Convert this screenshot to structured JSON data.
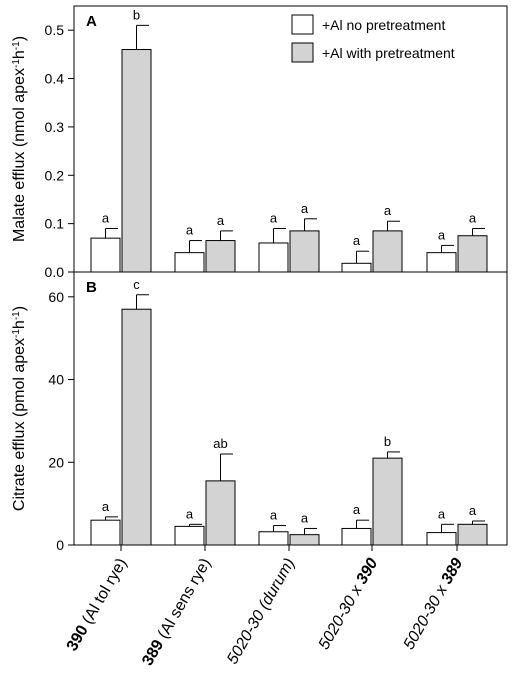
{
  "chart_data": {
    "type": "bar",
    "categories": [
      {
        "bold": "390",
        "rest": " (Al tol rye)",
        "italic": false
      },
      {
        "bold": "389",
        "rest": " (Al sens rye)",
        "italic": false
      },
      {
        "bold": "",
        "rest": "5020-30 (durum)",
        "italic": true
      },
      {
        "bold": "390",
        "rest": "5020-30 x ",
        "italic": true,
        "bold_last": true
      },
      {
        "bold": "389",
        "rest": "5020-30 x ",
        "italic": true,
        "bold_last": true
      }
    ],
    "legend": {
      "placement": "top-right",
      "entries": [
        {
          "label": "+Al no pretreatment",
          "color": "#ffffff"
        },
        {
          "label": "+Al with pretreatment",
          "color": "#d3d3d3"
        }
      ]
    },
    "panels": [
      {
        "label": "A",
        "ylabel": "Malate efflux (nmol apex",
        "ylabel_sup1": "-1",
        "ylabel_mid": "h",
        "ylabel_sup2": "-1",
        "ylabel_end": ")",
        "ylim": [
          0,
          0.55
        ],
        "ticks": [
          0.0,
          0.1,
          0.2,
          0.3,
          0.4,
          0.5
        ],
        "tick_labels": [
          "0.0",
          "0.1",
          "0.2",
          "0.3",
          "0.4",
          "0.5"
        ],
        "series": [
          {
            "name": "+Al no pretreatment",
            "values": [
              0.07,
              0.04,
              0.06,
              0.018,
              0.04
            ],
            "errors": [
              0.02,
              0.025,
              0.03,
              0.025,
              0.015
            ],
            "sig": [
              "a",
              "a",
              "a",
              "a",
              "a"
            ]
          },
          {
            "name": "+Al with pretreatment",
            "values": [
              0.46,
              0.065,
              0.085,
              0.085,
              0.075
            ],
            "errors": [
              0.05,
              0.02,
              0.025,
              0.02,
              0.015
            ],
            "sig": [
              "b",
              "a",
              "a",
              "a",
              "a"
            ]
          }
        ]
      },
      {
        "label": "B",
        "ylabel": "Citrate efflux (pmol apex",
        "ylabel_sup1": "-1",
        "ylabel_mid": "h",
        "ylabel_sup2": "-1",
        "ylabel_end": ")",
        "ylim": [
          0,
          66
        ],
        "ticks": [
          0,
          20,
          40,
          60
        ],
        "tick_labels": [
          "0",
          "20",
          "40",
          "60"
        ],
        "series": [
          {
            "name": "+Al no pretreatment",
            "values": [
              6.0,
              4.5,
              3.2,
              4.0,
              3.0
            ],
            "errors": [
              0.8,
              0.5,
              1.5,
              2.0,
              2.0
            ],
            "sig": [
              "a",
              "a",
              "a",
              "a",
              "a"
            ]
          },
          {
            "name": "+Al with pretreatment",
            "values": [
              57.0,
              15.5,
              2.5,
              21.0,
              5.0
            ],
            "errors": [
              3.5,
              6.5,
              1.5,
              1.5,
              0.8
            ],
            "sig": [
              "c",
              "ab",
              "a",
              "b",
              "a"
            ]
          }
        ]
      }
    ]
  }
}
